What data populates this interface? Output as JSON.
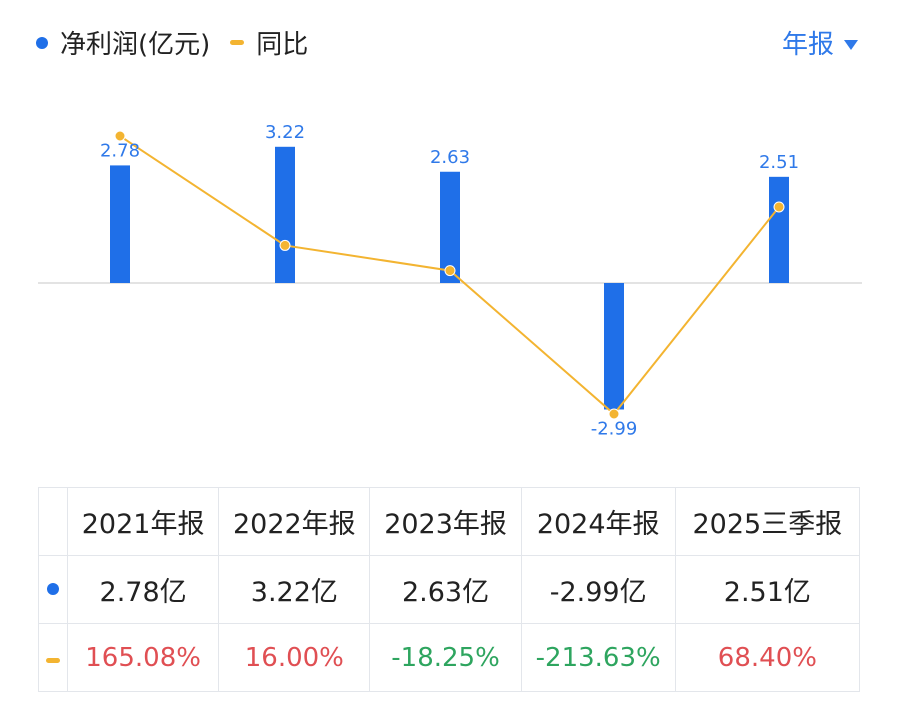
{
  "legend": {
    "net_profit_label": "净利润(亿元)",
    "yoy_label": "同比"
  },
  "period_selector": "年报",
  "colors": {
    "bar": "#1f6fe8",
    "line": "#f3b431",
    "positive": "#e04f53",
    "negative": "#2ea55f"
  },
  "chart_data": {
    "type": "bar",
    "categories": [
      "2021年报",
      "2022年报",
      "2023年报",
      "2024年报",
      "2025三季报"
    ],
    "series": [
      {
        "name": "净利润(亿元)",
        "type": "bar",
        "values": [
          2.78,
          3.22,
          2.63,
          -2.99,
          2.51
        ],
        "value_labels": [
          "2.78",
          "3.22",
          "2.63",
          "-2.99",
          "2.51"
        ]
      },
      {
        "name": "同比",
        "type": "line",
        "values": [
          165.08,
          16.0,
          -18.25,
          -213.63,
          68.4
        ]
      }
    ],
    "grid": false,
    "legend_position": "top-left"
  },
  "table": {
    "headers": [
      "2021年报",
      "2022年报",
      "2023年报",
      "2024年报",
      "2025三季报"
    ],
    "profit_row": [
      "2.78亿",
      "3.22亿",
      "2.63亿",
      "-2.99亿",
      "2.51亿"
    ],
    "yoy_row": [
      "165.08%",
      "16.00%",
      "-18.25%",
      "-213.63%",
      "68.40%"
    ]
  }
}
